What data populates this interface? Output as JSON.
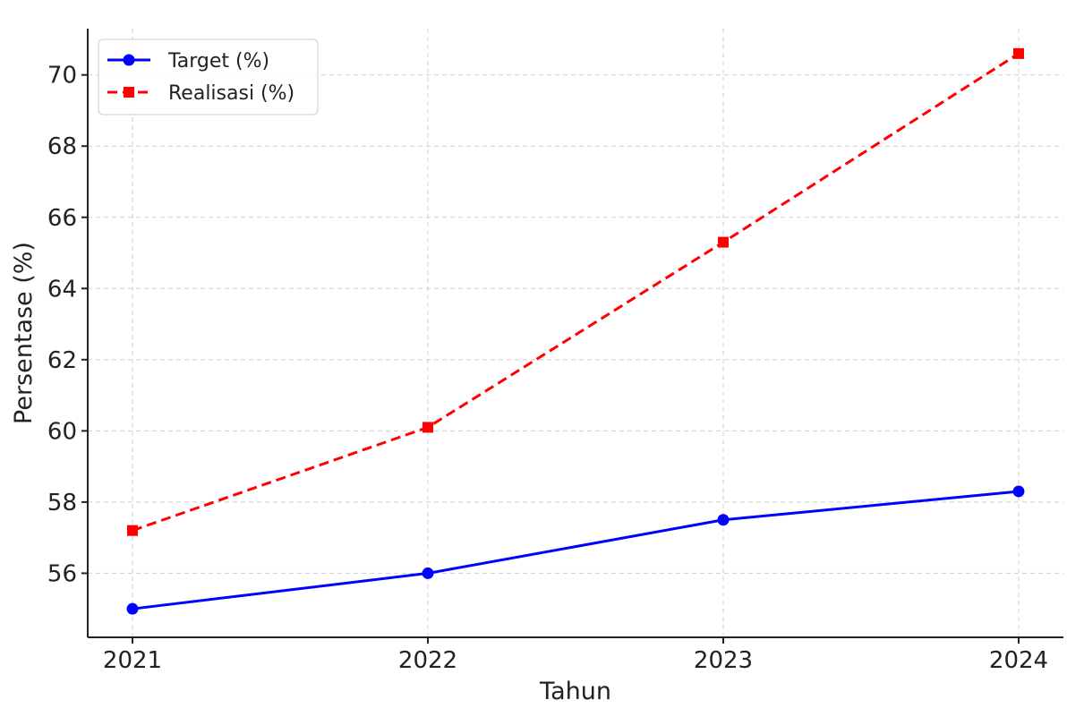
{
  "chart_data": {
    "type": "line",
    "xlabel": "Tahun",
    "ylabel": "Persentase (%)",
    "categories": [
      "2021",
      "2022",
      "2023",
      "2024"
    ],
    "ylim": [
      54.2,
      71.3
    ],
    "yticks": [
      56,
      58,
      60,
      62,
      64,
      66,
      68,
      70
    ],
    "grid": true,
    "legend_position": "top-left",
    "series": [
      {
        "name": "Target (%)",
        "values": [
          55.0,
          56.0,
          57.5,
          58.3
        ],
        "color": "#0000ff",
        "line_style": "solid",
        "marker": "circle"
      },
      {
        "name": "Realisasi (%)",
        "values": [
          57.2,
          60.1,
          65.3,
          70.6
        ],
        "color": "#ff0000",
        "line_style": "dashed",
        "marker": "square"
      }
    ]
  }
}
